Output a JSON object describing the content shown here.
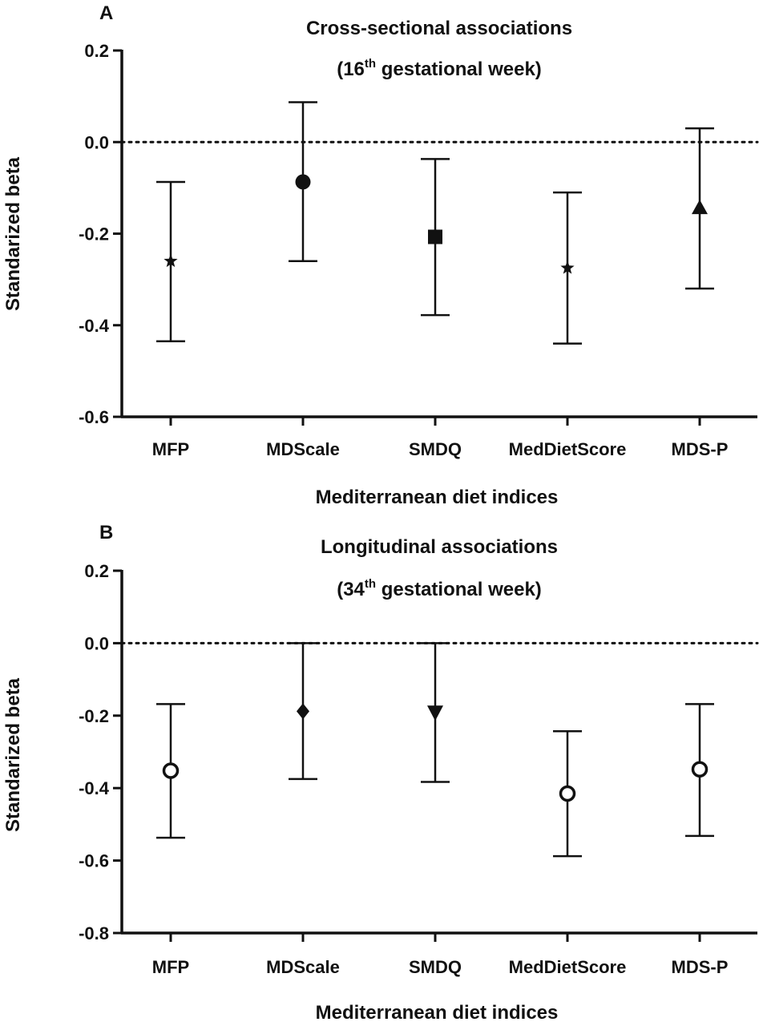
{
  "chart_data": [
    {
      "panel": "A",
      "type": "scatter",
      "title_line1": "Cross-sectional associations",
      "title_line2_prefix": "(16",
      "title_line2_sup": "th",
      "title_line2_suffix": " gestational week)",
      "xlabel": "Mediterranean diet indices",
      "ylabel": "Standarized beta",
      "ylim": [
        -0.6,
        0.2
      ],
      "yticks": [
        0.2,
        0.0,
        -0.2,
        -0.4,
        -0.6
      ],
      "ytick_labels": [
        "0.2",
        "0.0",
        "-0.2",
        "-0.4",
        "-0.6"
      ],
      "reference_line": 0.0,
      "categories": [
        "MFP",
        "MDScale",
        "SMDQ",
        "MedDietScore",
        "MDS-P"
      ],
      "values": [
        -0.26,
        -0.087,
        -0.207,
        -0.275,
        -0.145
      ],
      "ci_lower": [
        -0.435,
        -0.26,
        -0.378,
        -0.44,
        -0.32
      ],
      "ci_upper": [
        -0.087,
        0.087,
        -0.037,
        -0.11,
        0.03
      ],
      "markers": [
        "star",
        "circle",
        "square",
        "star",
        "triangle"
      ],
      "marker_color": "#111111"
    },
    {
      "panel": "B",
      "type": "scatter",
      "title_line1": "Longitudinal associations",
      "title_line2_prefix": "(34",
      "title_line2_sup": "th",
      "title_line2_suffix": " gestational week)",
      "xlabel": "Mediterranean diet indices",
      "ylabel": "Standarized beta",
      "ylim": [
        -0.8,
        0.2
      ],
      "yticks": [
        0.2,
        0.0,
        -0.2,
        -0.4,
        -0.6,
        -0.8
      ],
      "ytick_labels": [
        "0.2",
        "0.0",
        "-0.2",
        "-0.4",
        "-0.6",
        "-0.8"
      ],
      "reference_line": 0.0,
      "categories": [
        "MFP",
        "MDScale",
        "SMDQ",
        "MedDietScore",
        "MDS-P"
      ],
      "values": [
        -0.352,
        -0.188,
        -0.19,
        -0.415,
        -0.348
      ],
      "ci_lower": [
        -0.537,
        -0.375,
        -0.383,
        -0.588,
        -0.532
      ],
      "ci_upper": [
        -0.168,
        0.0,
        0.0,
        -0.243,
        -0.168
      ],
      "markers": [
        "circle-open",
        "diamond",
        "triangle-down",
        "circle-open",
        "circle-open"
      ],
      "marker_color": "#111111"
    }
  ]
}
